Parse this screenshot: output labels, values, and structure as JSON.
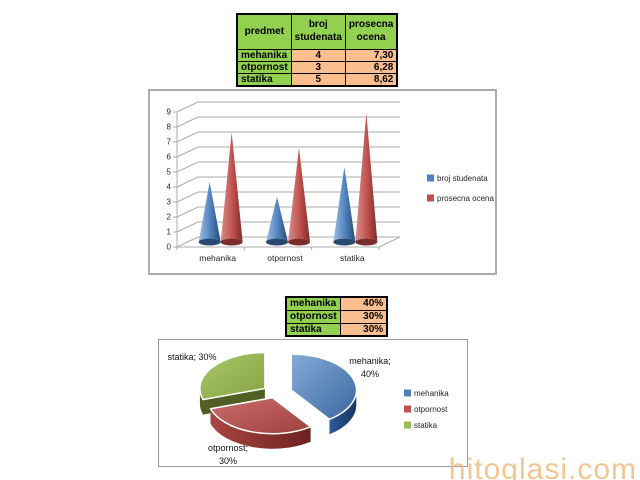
{
  "watermark": "hitoglasi.com",
  "table1": {
    "headers": [
      "predmet",
      "broj studenata",
      "prosecna ocena"
    ],
    "rows": [
      [
        "mehanika",
        "4",
        "7,30"
      ],
      [
        "otpornost",
        "3",
        "6,28"
      ],
      [
        "statika",
        "5",
        "8,62"
      ]
    ]
  },
  "table2": {
    "rows": [
      [
        "mehanika",
        "40%"
      ],
      [
        "otpornost",
        "30%"
      ],
      [
        "statika",
        "30%"
      ]
    ]
  },
  "colors": {
    "table_green": "#92D050",
    "table_peach": "#FBBF8F",
    "series_blue": "#4F81BD",
    "series_red": "#C0504D",
    "series_green": "#9BBB59",
    "grid_gray": "#ABABAB"
  },
  "chart_data": [
    {
      "type": "bar",
      "subtype": "3d-cone",
      "title": "",
      "categories": [
        "mehanika",
        "otpornost",
        "statika"
      ],
      "series": [
        {
          "name": "broj studenata",
          "values": [
            4,
            3,
            5
          ],
          "color": "#4F81BD",
          "gradient": [
            "#9DBCE0",
            "#4F81BD",
            "#27496F"
          ]
        },
        {
          "name": "prosecna ocena",
          "values": [
            7.3,
            6.28,
            8.62
          ],
          "color": "#C0504D",
          "gradient": [
            "#D6908E",
            "#C0504D",
            "#7B2D2B"
          ]
        }
      ],
      "xlabel": "",
      "ylabel": "",
      "ylim": [
        0,
        9
      ],
      "ytick_step": 1,
      "grid": true,
      "legend_position": "right"
    },
    {
      "type": "pie",
      "subtype": "3d-exploded",
      "title": "",
      "labels": [
        "mehanika",
        "otpornost",
        "statika"
      ],
      "values": [
        40,
        30,
        30
      ],
      "colors": [
        "#4F81BD",
        "#C0504D",
        "#9BBB59"
      ],
      "dark_colors": [
        "#1E4467",
        "#84302D",
        "#515E24"
      ],
      "data_labels": [
        [
          "mehanika;",
          "40%"
        ],
        [
          "otpornost;",
          "30%"
        ],
        [
          "statika; 30%"
        ]
      ],
      "legend_position": "right"
    }
  ]
}
